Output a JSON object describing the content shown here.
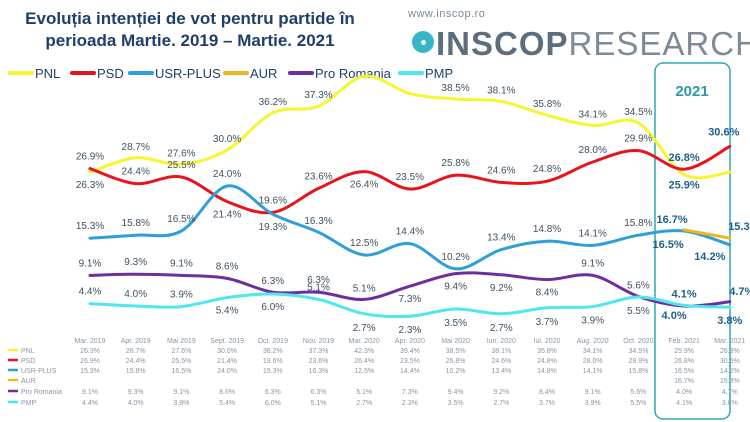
{
  "header": {
    "title_line1": "Evoluția intenției de vot pentru partide în",
    "title_line2": "perioada Martie. 2019 – Martie. 2021",
    "brand_url": "www.inscop.ro",
    "brand_bold": "INSCOP",
    "brand_light": "RESEARCH"
  },
  "highlight_label": "2021",
  "chart_data": {
    "type": "line",
    "title": "Evoluția intenției de vot pentru partide în perioada Martie. 2019 – Martie. 2021",
    "xlabel": "",
    "ylabel": "",
    "ylim": [
      0,
      45
    ],
    "grid": false,
    "legend": "top",
    "categories": [
      "Mar. 2019",
      "Apr. 2019",
      "Mai 2019",
      "Sept. 2019",
      "Oct. 2019",
      "Nov. 2019",
      "Mar. 2020",
      "Apr. 2020",
      "Mai 2020",
      "Iun. 2020",
      "Iul. 2020",
      "Aug. 2020",
      "Oct. 2020",
      "Feb. 2021",
      "Mar. 2021"
    ],
    "series": [
      {
        "name": "PNL",
        "color": "#f5f531",
        "values": [
          26.3,
          28.7,
          27.6,
          30.0,
          36.2,
          37.3,
          42.3,
          39.4,
          38.5,
          38.1,
          35.8,
          34.1,
          34.5,
          25.9,
          26.3
        ],
        "labels": [
          "26.3%",
          "28.7%",
          "27.6%",
          "30.0%",
          "36.2%",
          "37.3%",
          "",
          "39.4%",
          "38.5%",
          "38.1%",
          "35.8%",
          "34.1%",
          "34.5%",
          "25.9%",
          ""
        ],
        "table": [
          "26.3%",
          "28.7%",
          "27.6%",
          "30.0%",
          "36.2%",
          "37.3%",
          "42.3%",
          "39.4%",
          "38.5%",
          "38.1%",
          "35.8%",
          "34.1%",
          "34.5%",
          "25.9%",
          "26.3%"
        ]
      },
      {
        "name": "PSD",
        "color": "#e8141c",
        "values": [
          26.9,
          24.4,
          25.5,
          21.4,
          19.6,
          23.6,
          26.4,
          23.5,
          25.8,
          24.6,
          24.8,
          28.0,
          29.9,
          26.8,
          30.6
        ],
        "labels": [
          "26.9%",
          "24.4%",
          "25.5%",
          "21.4%",
          "19.6%",
          "23.6%",
          "26.4%",
          "23.5%",
          "25.8%",
          "24.6%",
          "24.8%",
          "28.0%",
          "29.9%",
          "26.8%",
          "30.6%"
        ],
        "table": [
          "26.9%",
          "24.4%",
          "25.5%",
          "21.4%",
          "19.6%",
          "23.6%",
          "26.4%",
          "23.5%",
          "25.8%",
          "24.6%",
          "24.8%",
          "28.0%",
          "29.9%",
          "26.8%",
          "30.6%"
        ]
      },
      {
        "name": "USR-PLUS",
        "color": "#2e9fd8",
        "values": [
          15.3,
          15.8,
          16.5,
          24.0,
          19.3,
          16.3,
          12.5,
          14.4,
          10.2,
          13.4,
          14.8,
          14.1,
          15.8,
          16.5,
          14.2
        ],
        "labels": [
          "15.3%",
          "15.8%",
          "16.5%",
          "24.0%",
          "19.3%",
          "16.3%",
          "12.5%",
          "14.4%",
          "10.2%",
          "13.4%",
          "14.8%",
          "14.1%",
          "15.8%",
          "16.5%",
          "14.2%"
        ],
        "table": [
          "15.3%",
          "15.8%",
          "16.5%",
          "24.0%",
          "19.3%",
          "16.3%",
          "12.5%",
          "14.4%",
          "10.2%",
          "13.4%",
          "14.8%",
          "14.1%",
          "15.8%",
          "16.5%",
          "14.2%"
        ]
      },
      {
        "name": "AUR",
        "color": "#f2b51f",
        "values": [
          null,
          null,
          null,
          null,
          null,
          null,
          null,
          null,
          null,
          null,
          null,
          null,
          null,
          16.7,
          15.3
        ],
        "labels": [
          "",
          "",
          "",
          "",
          "",
          "",
          "",
          "",
          "",
          "",
          "",
          "",
          "",
          "16.7%",
          "15.3%"
        ],
        "table": [
          "",
          "",
          "",
          "",
          "",
          "",
          "",
          "",
          "",
          "",
          "",
          "",
          "",
          "16.7%",
          "15.3%"
        ]
      },
      {
        "name": "Pro Romania",
        "color": "#6e2f9e",
        "values": [
          9.1,
          9.3,
          9.1,
          8.6,
          6.3,
          6.3,
          5.1,
          7.3,
          9.4,
          9.2,
          8.4,
          9.1,
          5.6,
          4.0,
          4.7
        ],
        "labels": [
          "9.1%",
          "9.3%",
          "9.1%",
          "8.6%",
          "6.3%",
          "6.3%",
          "5.1%",
          "7.3%",
          "9.4%",
          "9.2%",
          "8.4%",
          "9.1%",
          "5.6%",
          "4.0%",
          "4.7%"
        ],
        "table": [
          "9.1%",
          "9.3%",
          "9.1%",
          "8.6%",
          "6.3%",
          "6.3%",
          "5.1%",
          "7.3%",
          "9.4%",
          "9.2%",
          "8.4%",
          "9.1%",
          "5.6%",
          "4.0%",
          "4.7%"
        ]
      },
      {
        "name": "PMP",
        "color": "#4fe6ee",
        "values": [
          4.4,
          4.0,
          3.9,
          5.4,
          6.0,
          5.1,
          2.7,
          2.3,
          3.5,
          2.7,
          3.7,
          3.9,
          5.5,
          4.1,
          3.8
        ],
        "labels": [
          "4.4%",
          "4.0%",
          "3.9%",
          "5.4%",
          "6.0%",
          "5.1%",
          "2.7%",
          "2.3%",
          "3.5%",
          "2.7%",
          "3.7%",
          "3.9%",
          "5.5%",
          "4.1%",
          "3.8%"
        ],
        "table": [
          "4.4%",
          "4.0%",
          "3.9%",
          "5.4%",
          "6.0%",
          "5.1%",
          "2.7%",
          "2.3%",
          "3.5%",
          "2.7%",
          "3.7%",
          "3.9%",
          "5.5%",
          "4.1%",
          "3.8%"
        ]
      }
    ]
  }
}
